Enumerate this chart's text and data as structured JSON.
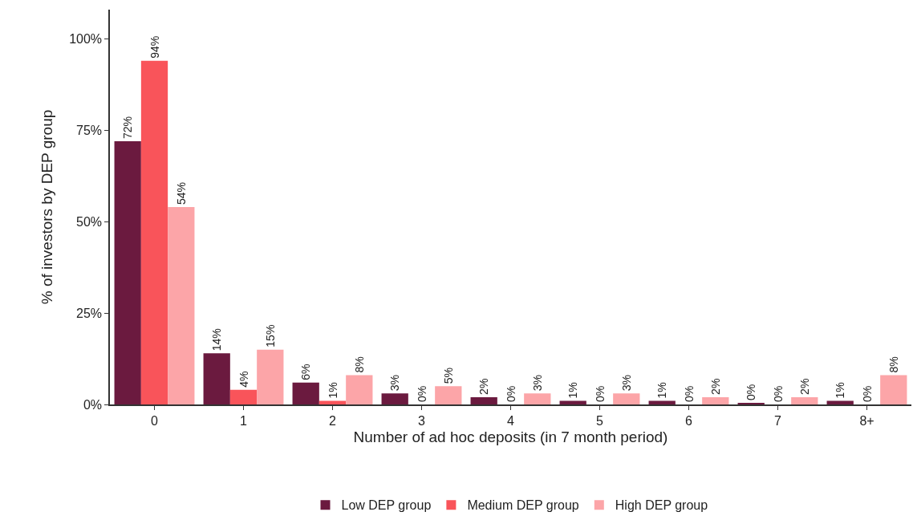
{
  "chart_data": {
    "type": "bar",
    "xlabel": "Number of ad hoc deposits (in 7 month period)",
    "ylabel": "% of investors by DEP group",
    "categories": [
      "0",
      "1",
      "2",
      "3",
      "4",
      "5",
      "6",
      "7",
      "8+"
    ],
    "series": [
      {
        "name": "Low DEP group",
        "color": "#6b1a3f",
        "values": [
          72,
          14,
          6,
          3,
          2,
          1,
          1,
          0.3,
          1
        ],
        "value_labels": [
          "72%",
          "14%",
          "6%",
          "3%",
          "2%",
          "1%",
          "1%",
          "0%",
          "1%"
        ]
      },
      {
        "name": "Medium DEP group",
        "color": "#f9545a",
        "values": [
          94,
          4,
          1,
          0,
          0,
          0,
          0,
          0,
          0
        ],
        "value_labels": [
          "94%",
          "4%",
          "1%",
          "0%",
          "0%",
          "0%",
          "0%",
          "0%",
          "0%"
        ]
      },
      {
        "name": "High DEP group",
        "color": "#fca5a8",
        "values": [
          54,
          15,
          8,
          5,
          3,
          3,
          2,
          2,
          8
        ],
        "value_labels": [
          "54%",
          "15%",
          "8%",
          "5%",
          "3%",
          "3%",
          "2%",
          "2%",
          "8%"
        ]
      }
    ],
    "ylim": [
      0,
      108
    ],
    "yticks": [
      {
        "value": 0,
        "label": "0%"
      },
      {
        "value": 25,
        "label": "25%"
      },
      {
        "value": 50,
        "label": "50%"
      },
      {
        "value": 75,
        "label": "75%"
      },
      {
        "value": 100,
        "label": "100%"
      }
    ],
    "legend": "bottom"
  }
}
